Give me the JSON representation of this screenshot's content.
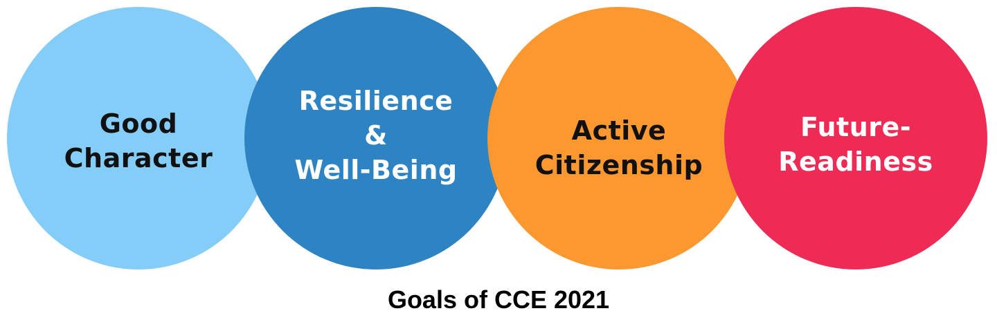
{
  "goals": [
    {
      "lines": [
        "Good",
        "Character"
      ],
      "fill": "#85CDF9",
      "text_color": "#111111"
    },
    {
      "lines": [
        "Resilience",
        "&",
        "Well-Being"
      ],
      "fill": "#2E84C3",
      "text_color": "#FFFFFF"
    },
    {
      "lines": [
        "Active",
        "Citizenship"
      ],
      "fill": "#FB9830",
      "text_color": "#111111"
    },
    {
      "lines": [
        "Future-",
        "Readiness"
      ],
      "fill": "#EE2B54",
      "text_color": "#FFFFFF"
    }
  ],
  "caption": "Goals of CCE 2021"
}
